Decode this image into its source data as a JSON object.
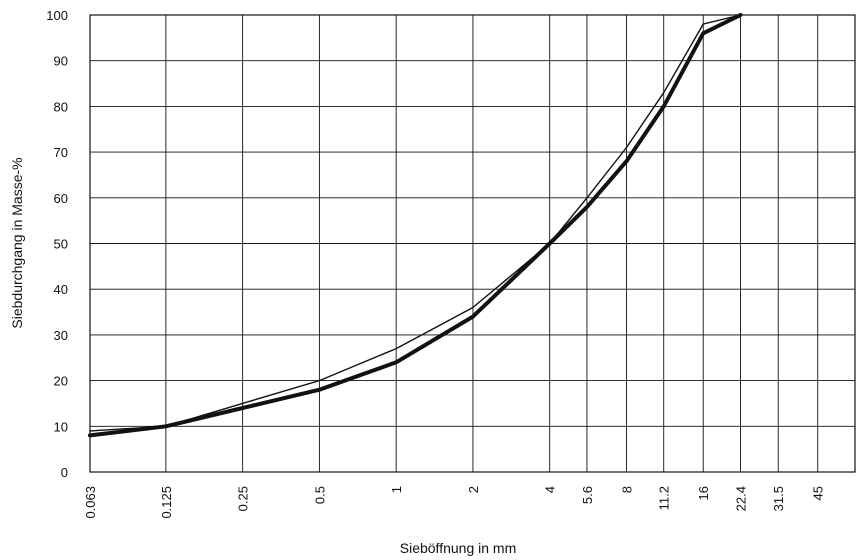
{
  "chart_data": {
    "type": "line",
    "xlabel": "Sieböffnung in mm",
    "ylabel": "Siebdurchgang in Masse-%",
    "ylim": [
      0,
      100
    ],
    "y_ticks": [
      "0",
      "10",
      "20",
      "30",
      "40",
      "50",
      "60",
      "70",
      "80",
      "90",
      "100"
    ],
    "x_ticks": [
      "0.063",
      "0.125",
      "0.25",
      "0.5",
      "1",
      "2",
      "4",
      "5.6",
      "8",
      "11.2",
      "16",
      "22.4",
      "31.5",
      "45"
    ],
    "grid": true,
    "x_scale": "log",
    "series": [
      {
        "x": [
          0.063,
          0.125,
          0.25,
          0.5,
          1,
          2,
          4,
          5.6,
          8,
          11.2,
          16,
          22.4
        ],
        "y": [
          8,
          10,
          14,
          18,
          24,
          34,
          50,
          58,
          68,
          80,
          96,
          100
        ],
        "stroke": "heavy"
      },
      {
        "x": [
          0.063,
          0.125,
          0.25,
          0.5,
          1,
          2,
          4,
          5.6,
          8,
          11.2,
          16,
          22.4
        ],
        "y": [
          9,
          10,
          15,
          20,
          27,
          36,
          50,
          60,
          71,
          83,
          98,
          100
        ],
        "stroke": "thin"
      }
    ]
  }
}
